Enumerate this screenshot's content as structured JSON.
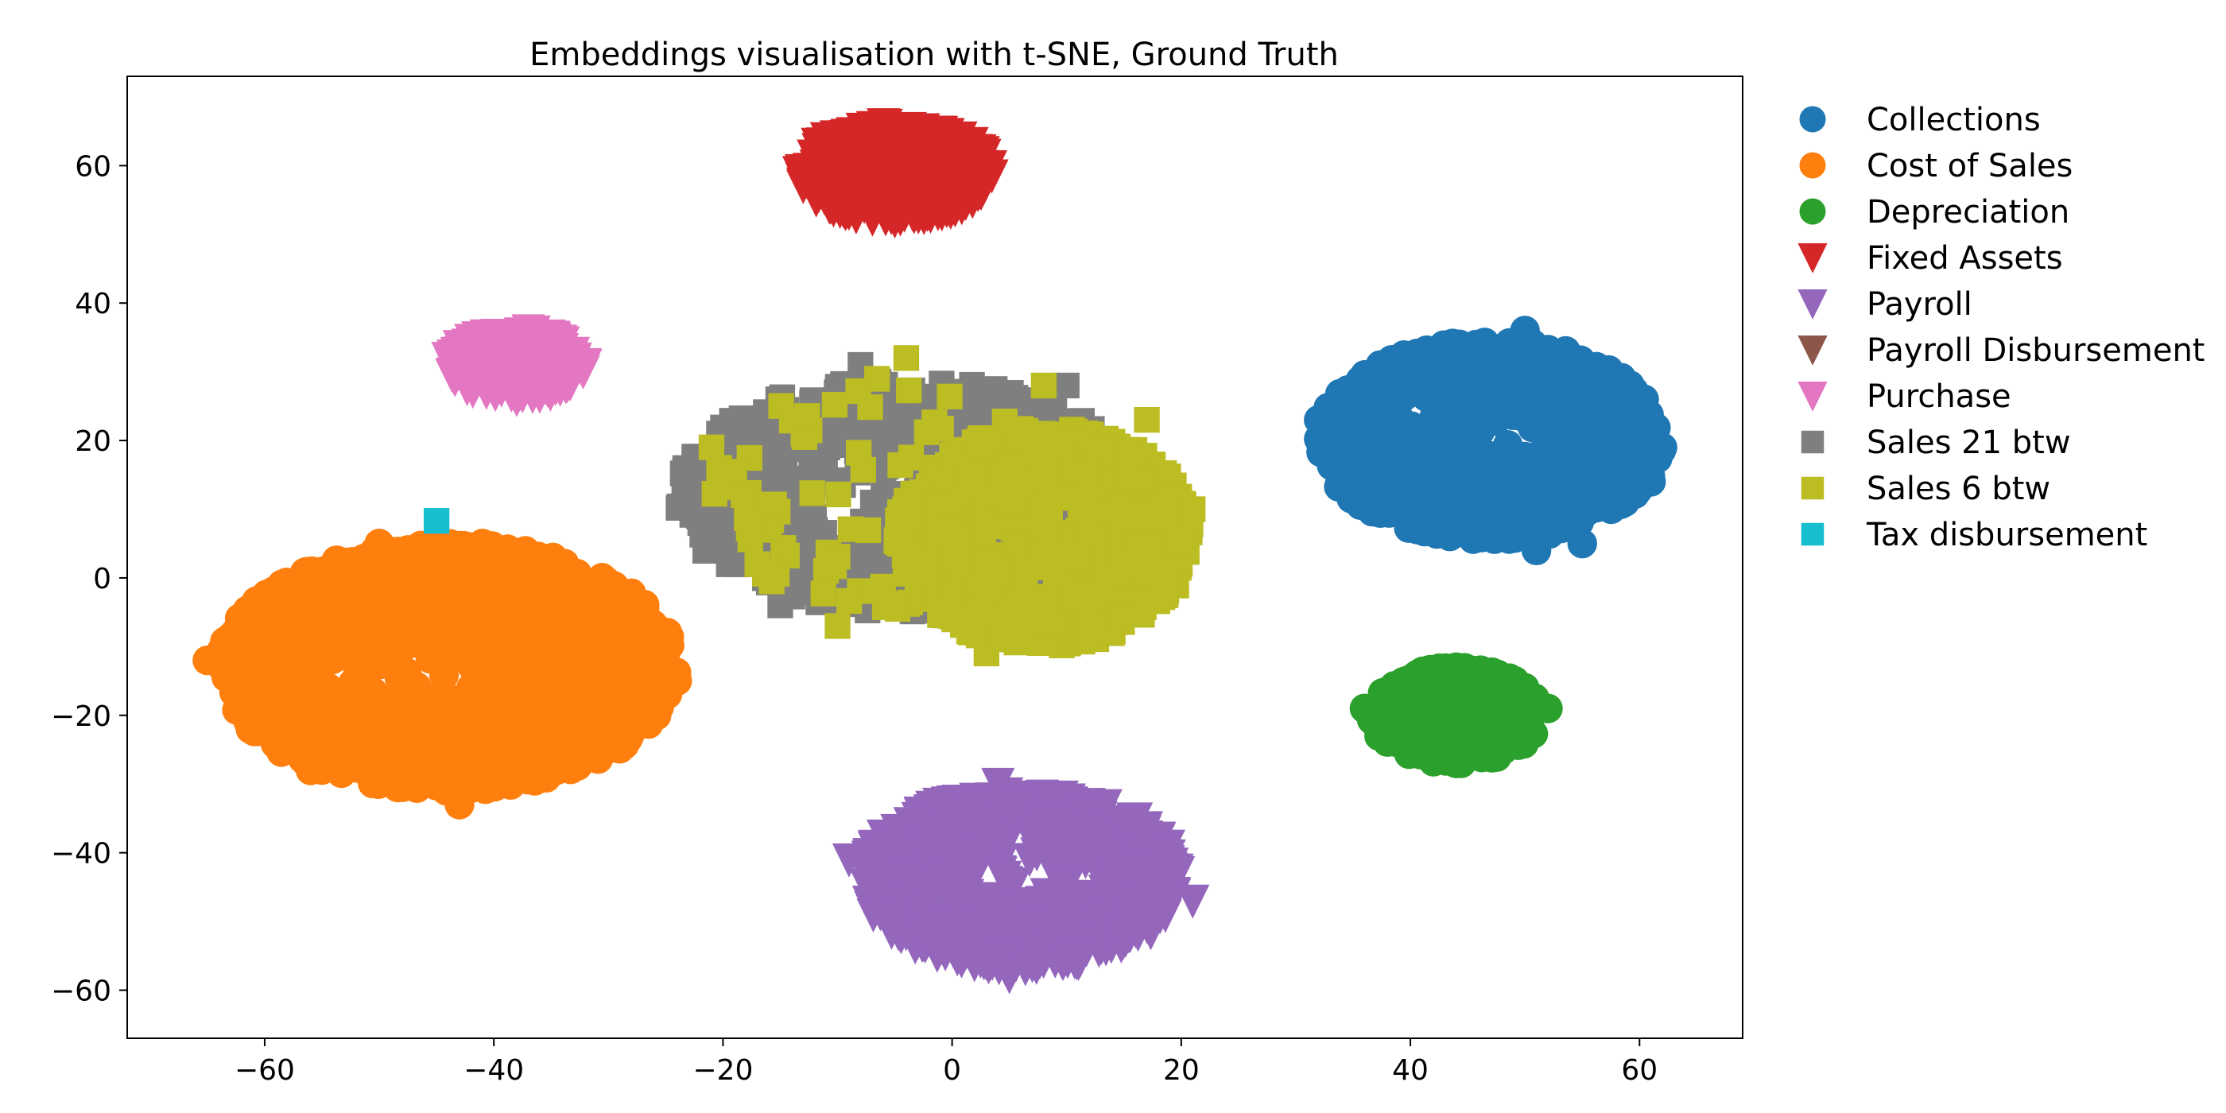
{
  "chart_data": {
    "type": "scatter",
    "title": "Embeddings visualisation with t-SNE, Ground Truth",
    "xlabel": "",
    "ylabel": "",
    "xlim": [
      -72,
      69
    ],
    "ylim": [
      -67,
      73
    ],
    "xticks": [
      -60,
      -40,
      -20,
      0,
      20,
      40,
      60
    ],
    "yticks": [
      -60,
      -40,
      -20,
      0,
      20,
      40,
      60
    ],
    "xtick_labels": [
      "−60",
      "−40",
      "−20",
      "0",
      "20",
      "40",
      "60"
    ],
    "ytick_labels": [
      "−60",
      "−40",
      "−20",
      "0",
      "20",
      "40",
      "60"
    ],
    "grid": false,
    "legend_position": "outside-right-top",
    "series": [
      {
        "name": "Collections",
        "color": "#1f77b4",
        "marker": "circle",
        "cluster": {
          "cx": 47,
          "cy": 20,
          "rx": 15,
          "ry": 14.5,
          "count": 700
        },
        "points": [
          [
            32,
            23
          ],
          [
            62,
            19
          ],
          [
            50,
            36
          ],
          [
            51,
            4
          ],
          [
            55,
            5
          ],
          [
            34,
            14
          ],
          [
            61,
            14
          ]
        ]
      },
      {
        "name": "Cost of Sales",
        "color": "#ff7f0e",
        "marker": "circle",
        "cluster": {
          "cx": -44,
          "cy": -13,
          "rx": 20,
          "ry": 18,
          "count": 1400
        },
        "points": [
          [
            -65,
            -12
          ],
          [
            -24,
            -15
          ],
          [
            -43,
            -33
          ],
          [
            -41,
            5
          ],
          [
            -50,
            5
          ],
          [
            -56,
            -28
          ],
          [
            -30,
            -6
          ]
        ]
      },
      {
        "name": "Depreciation",
        "color": "#2ca02c",
        "marker": "circle",
        "cluster": {
          "cx": 44,
          "cy": -20,
          "rx": 7.5,
          "ry": 7,
          "count": 320
        },
        "points": [
          [
            36,
            -19
          ],
          [
            52,
            -19
          ],
          [
            44,
            -13
          ],
          [
            44,
            -27
          ]
        ]
      },
      {
        "name": "Fixed Assets",
        "color": "#d62728",
        "marker": "triangle-down",
        "cluster": {
          "cx": -5,
          "cy": 59,
          "rx": 8.5,
          "ry": 7,
          "count": 320
        },
        "points": [
          [
            -13,
            57
          ],
          [
            3,
            58
          ],
          [
            -5,
            52
          ],
          [
            -6,
            66
          ]
        ]
      },
      {
        "name": "Payroll",
        "color": "#9467bd",
        "marker": "triangle-down",
        "cluster": {
          "cx": 6,
          "cy": -44,
          "rx": 14,
          "ry": 13,
          "count": 650
        },
        "points": [
          [
            -9,
            -41
          ],
          [
            21,
            -47
          ],
          [
            5,
            -58
          ],
          [
            4,
            -30
          ]
        ]
      },
      {
        "name": "Payroll Disbursement",
        "color": "#8c564b",
        "marker": "triangle-down",
        "cluster": null,
        "points": [
          [
            -15,
            -2
          ]
        ]
      },
      {
        "name": "Purchase",
        "color": "#e377c2",
        "marker": "triangle-down",
        "cluster": {
          "cx": -38,
          "cy": 31,
          "rx": 6,
          "ry": 5,
          "count": 160
        },
        "points": [
          [
            -44,
            32
          ],
          [
            -32,
            31
          ],
          [
            -37,
            36
          ],
          [
            -38,
            26
          ]
        ]
      },
      {
        "name": "Sales 21 btw",
        "color": "#7f7f7f",
        "marker": "square",
        "cluster": {
          "cx": -4,
          "cy": 12,
          "rx": 20,
          "ry": 17,
          "count": 650
        },
        "points": [
          [
            -21,
            13
          ],
          [
            -8,
            31
          ],
          [
            19,
            0
          ],
          [
            -15,
            -4
          ],
          [
            10,
            28
          ],
          [
            -18,
            20
          ]
        ]
      },
      {
        "name": "Sales 6 btw",
        "color": "#bcbd22",
        "marker": "square",
        "cluster": {
          "cx": 8,
          "cy": 6,
          "rx": 13,
          "ry": 16,
          "count": 600
        },
        "scatter_extra": {
          "cx": -6,
          "cy": 12,
          "rx": 15,
          "ry": 17,
          "count": 90
        },
        "points": [
          [
            -21,
            19
          ],
          [
            -4,
            32
          ],
          [
            21,
            10
          ],
          [
            3,
            -11
          ],
          [
            -17,
            2
          ],
          [
            -10,
            -7
          ],
          [
            17,
            23
          ],
          [
            8,
            28
          ]
        ]
      },
      {
        "name": "Tax disbursement",
        "color": "#17becf",
        "marker": "square",
        "cluster": null,
        "points": [
          [
            -45,
            8.3
          ]
        ]
      }
    ]
  }
}
